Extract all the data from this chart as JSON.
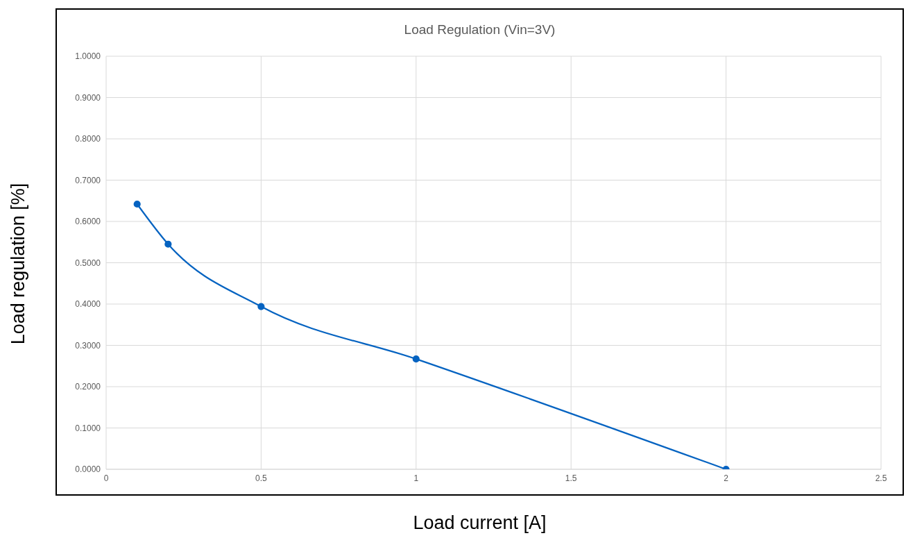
{
  "chart_data": {
    "type": "line",
    "title": "Load Regulation (Vin=3V)",
    "xlabel": "Load current [A]",
    "ylabel": "Load regulation [%]",
    "x": [
      0.1,
      0.2,
      0.5,
      1,
      2
    ],
    "series": [
      {
        "color": "#0563c1",
        "values": [
          0.642,
          0.545,
          0.394,
          0.267,
          0
        ]
      }
    ],
    "xlim": [
      0,
      2.5
    ],
    "xticks": [
      0,
      0.5,
      1,
      1.5,
      2,
      2.5
    ],
    "ylim": [
      0,
      1
    ],
    "yticks": [
      {
        "value": 0,
        "label": "0.0000"
      },
      {
        "value": 0.1,
        "label": "0.1000"
      },
      {
        "value": 0.2,
        "label": "0.2000"
      },
      {
        "value": 0.3,
        "label": "0.3000"
      },
      {
        "value": 0.4,
        "label": "0.4000"
      },
      {
        "value": 0.5,
        "label": "0.5000"
      },
      {
        "value": 0.6,
        "label": "0.6000"
      },
      {
        "value": 0.7,
        "label": "0.7000"
      },
      {
        "value": 0.8,
        "label": "0.8000"
      },
      {
        "value": 0.9,
        "label": "0.9000"
      },
      {
        "value": 1,
        "label": "1.0000"
      }
    ],
    "grid": true,
    "marker": "circle"
  }
}
